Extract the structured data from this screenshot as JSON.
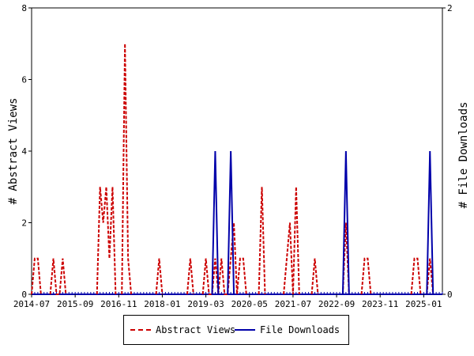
{
  "chart_data": {
    "type": "line",
    "x_label_ticks": [
      "2014-07",
      "2015-09",
      "2016-11",
      "2018-01",
      "2019-03",
      "2020-05",
      "2021-07",
      "2022-09",
      "2023-11",
      "2025-01"
    ],
    "y_left": {
      "label": "# Abstract Views",
      "ticks": [
        "0",
        "2",
        "4",
        "6",
        "8"
      ],
      "range": [
        0,
        8
      ]
    },
    "y_right": {
      "label": "# File Downloads",
      "ticks": [
        "0",
        "2"
      ],
      "range": [
        0,
        2
      ]
    },
    "x_range": [
      "2014-07",
      "2025-07"
    ],
    "legend_position": "bottom-center",
    "series": [
      {
        "name": "Abstract Views",
        "axis": "left",
        "color": "#cc0000",
        "style": "dashed",
        "points": [
          [
            "2014-07",
            0
          ],
          [
            "2014-08",
            1
          ],
          [
            "2014-09",
            1
          ],
          [
            "2014-10",
            0
          ],
          [
            "2015-01",
            0
          ],
          [
            "2015-02",
            1
          ],
          [
            "2015-03",
            0
          ],
          [
            "2015-04",
            0
          ],
          [
            "2015-05",
            1
          ],
          [
            "2015-06",
            0
          ],
          [
            "2016-04",
            0
          ],
          [
            "2016-05",
            3
          ],
          [
            "2016-06",
            2
          ],
          [
            "2016-07",
            3
          ],
          [
            "2016-08",
            1
          ],
          [
            "2016-09",
            3
          ],
          [
            "2016-10",
            0
          ],
          [
            "2016-12",
            0
          ],
          [
            "2017-01",
            7
          ],
          [
            "2017-02",
            1
          ],
          [
            "2017-03",
            0
          ],
          [
            "2017-11",
            0
          ],
          [
            "2017-12",
            1
          ],
          [
            "2018-01",
            0
          ],
          [
            "2018-09",
            0
          ],
          [
            "2018-10",
            1
          ],
          [
            "2018-11",
            0
          ],
          [
            "2019-02",
            0
          ],
          [
            "2019-03",
            1
          ],
          [
            "2019-04",
            0
          ],
          [
            "2019-05",
            0
          ],
          [
            "2019-06",
            1
          ],
          [
            "2019-07",
            0
          ],
          [
            "2019-08",
            1
          ],
          [
            "2019-09",
            0
          ],
          [
            "2019-10",
            0
          ],
          [
            "2019-11",
            1
          ],
          [
            "2019-12",
            2
          ],
          [
            "2020-01",
            0
          ],
          [
            "2020-02",
            1
          ],
          [
            "2020-03",
            1
          ],
          [
            "2020-04",
            0
          ],
          [
            "2020-08",
            0
          ],
          [
            "2020-09",
            3
          ],
          [
            "2020-10",
            0
          ],
          [
            "2021-04",
            0
          ],
          [
            "2021-05",
            1
          ],
          [
            "2021-06",
            2
          ],
          [
            "2021-07",
            0
          ],
          [
            "2021-08",
            3
          ],
          [
            "2021-09",
            0
          ],
          [
            "2022-01",
            0
          ],
          [
            "2022-02",
            1
          ],
          [
            "2022-03",
            0
          ],
          [
            "2022-11",
            0
          ],
          [
            "2022-12",
            2
          ],
          [
            "2023-01",
            0
          ],
          [
            "2023-05",
            0
          ],
          [
            "2023-06",
            1
          ],
          [
            "2023-07",
            1
          ],
          [
            "2023-08",
            0
          ],
          [
            "2024-09",
            0
          ],
          [
            "2024-10",
            1
          ],
          [
            "2024-11",
            1
          ],
          [
            "2024-12",
            0
          ],
          [
            "2025-02",
            0
          ],
          [
            "2025-03",
            1
          ],
          [
            "2025-04",
            0
          ]
        ]
      },
      {
        "name": "File Downloads",
        "axis": "right",
        "color": "#0000aa",
        "style": "solid",
        "points": [
          [
            "2019-05",
            0
          ],
          [
            "2019-06",
            1
          ],
          [
            "2019-07",
            0
          ],
          [
            "2019-10",
            0
          ],
          [
            "2019-11",
            1
          ],
          [
            "2019-12",
            0
          ],
          [
            "2022-11",
            0
          ],
          [
            "2022-12",
            1
          ],
          [
            "2023-01",
            0
          ],
          [
            "2025-02",
            0
          ],
          [
            "2025-03",
            1
          ],
          [
            "2025-04",
            0
          ]
        ]
      }
    ]
  }
}
